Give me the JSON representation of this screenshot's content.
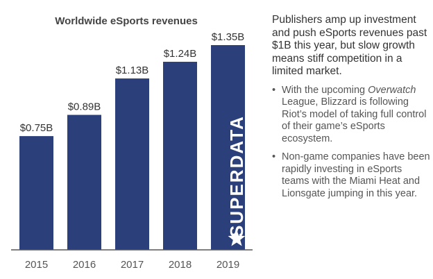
{
  "chart_data": {
    "type": "bar",
    "title": "Worldwide eSports revenues",
    "categories": [
      "2015",
      "2016",
      "2017",
      "2018",
      "2019"
    ],
    "values": [
      0.75,
      0.89,
      1.13,
      1.24,
      1.35
    ],
    "value_labels": [
      "$0.75B",
      "$0.89B",
      "$1.13B",
      "$1.24B",
      "$1.35B"
    ],
    "xlabel": "",
    "ylabel": "",
    "ylim": [
      0,
      1.35
    ],
    "grid": false,
    "legend": "none",
    "bar_color": "#2b3f7a",
    "axis_color": "#555555"
  },
  "watermark": {
    "text": "SUPERDATA",
    "icon": "star-icon"
  },
  "sidebar": {
    "headline": "Publishers amp up investment and push eSports revenues past $1B this year, but slow growth means stiff competition in a limited market.",
    "bullet_symbol": "•",
    "bullets": [
      {
        "pre": "With the upcoming ",
        "italic": "Overwatch",
        "post": " League, Blizzard is following Riot’s model of taking full control of their game’s eSports ecosystem."
      },
      {
        "pre": "Non-game companies have been rapidly investing in eSports teams with the Miami Heat and Lionsgate jumping in this year.",
        "italic": "",
        "post": ""
      }
    ]
  }
}
